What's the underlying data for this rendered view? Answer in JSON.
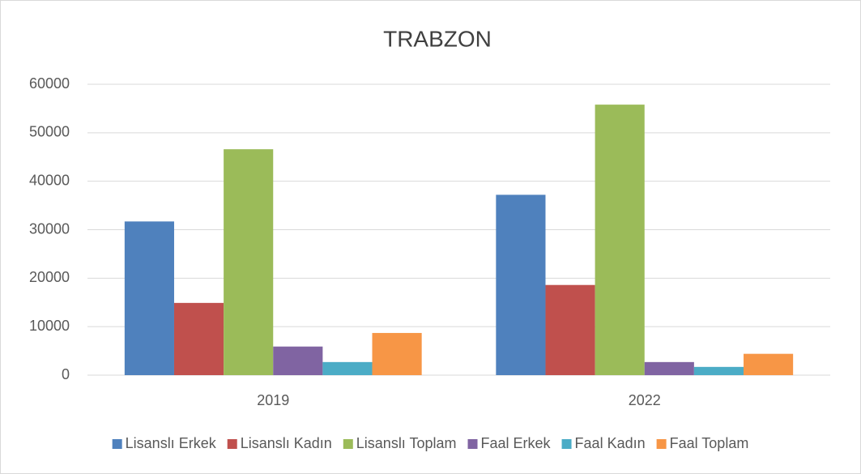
{
  "chart_data": {
    "type": "bar",
    "title": "TRABZON",
    "categories": [
      "2019",
      "2022"
    ],
    "series": [
      {
        "name": "Lisanslı Erkek",
        "color": "#4f81bd",
        "values": [
          31700,
          37200
        ]
      },
      {
        "name": "Lisanslı Kadın",
        "color": "#c0504d",
        "values": [
          14900,
          18600
        ]
      },
      {
        "name": "Lisanslı Toplam",
        "color": "#9bbb59",
        "values": [
          46600,
          55800
        ]
      },
      {
        "name": "Faal Erkek",
        "color": "#8064a2",
        "values": [
          5900,
          2700
        ]
      },
      {
        "name": "Faal Kadın",
        "color": "#4bacc6",
        "values": [
          2700,
          1700
        ]
      },
      {
        "name": "Faal Toplam",
        "color": "#f79646",
        "values": [
          8700,
          4400
        ]
      }
    ],
    "ylim": [
      0,
      60000
    ],
    "yticks": [
      0,
      10000,
      20000,
      30000,
      40000,
      50000,
      60000
    ],
    "grid": true,
    "legend": "bottom"
  }
}
